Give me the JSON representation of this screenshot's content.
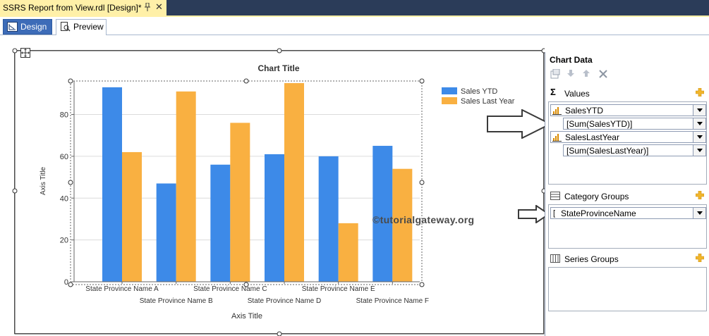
{
  "document_tab": {
    "title": "SSRS Report from View.rdl [Design]*",
    "pin_icon": "pin-icon",
    "close_glyph": "✕"
  },
  "view_tabs": [
    {
      "label": "Design",
      "icon": "design-icon",
      "active": true
    },
    {
      "label": "Preview",
      "icon": "preview-icon",
      "active": false
    }
  ],
  "colors": {
    "sales_ytd": "#3d8ae8",
    "sales_last_year": "#f9b041",
    "active_tab": "#3d6cb8",
    "doc_tab": "#fff0a8"
  },
  "chart_data": {
    "type": "bar",
    "title": "Chart Title",
    "xlabel": "Axis Title",
    "ylabel": "Axis Title",
    "categories": [
      "State Province Name A",
      "State Province Name B",
      "State Province Name C",
      "State Province Name D",
      "State Province Name E",
      "State Province Name F"
    ],
    "series": [
      {
        "name": "Sales YTD",
        "values": [
          93,
          47,
          56,
          61,
          60,
          65
        ]
      },
      {
        "name": "Sales Last Year",
        "values": [
          62,
          91,
          76,
          95,
          28,
          54
        ]
      }
    ],
    "ylim": [
      0,
      96
    ],
    "yticks": [
      0,
      20,
      40,
      60,
      80
    ],
    "grid": true,
    "legend": "top-right"
  },
  "watermark": "©tutorialgateway.org",
  "chart_data_pane": {
    "title": "Chart Data",
    "toolbar": [
      "properties-icon",
      "move-down-icon",
      "move-up-icon",
      "delete-icon"
    ],
    "values_section": {
      "label": "Values",
      "items": [
        {
          "label": "SalesYTD",
          "expression": "[Sum(SalesYTD)]"
        },
        {
          "label": "SalesLastYear",
          "expression": "[Sum(SalesLastYear)]"
        }
      ]
    },
    "category_groups": {
      "label": "Category Groups",
      "items": [
        {
          "label": "StateProvinceName"
        }
      ]
    },
    "series_groups": {
      "label": "Series Groups",
      "items": []
    }
  }
}
